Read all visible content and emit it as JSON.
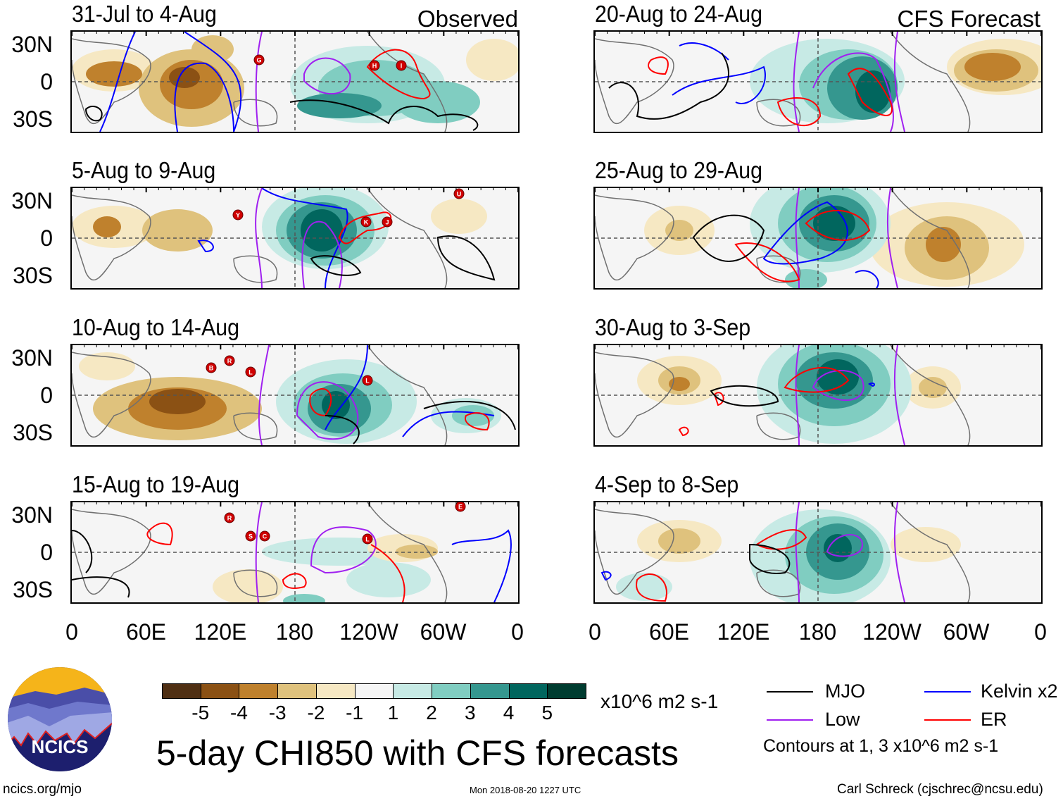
{
  "headers": {
    "observed": "Observed",
    "forecast": "CFS Forecast"
  },
  "panels": [
    {
      "title": "31-Jul to 4-Aug",
      "storms": [
        "G",
        "H",
        "I"
      ]
    },
    {
      "title": "5-Aug to 9-Aug",
      "storms": [
        "Y",
        "K",
        "J",
        "U"
      ]
    },
    {
      "title": "10-Aug to 14-Aug",
      "storms": [
        "B",
        "R",
        "L",
        "L"
      ]
    },
    {
      "title": "15-Aug to 19-Aug",
      "storms": [
        "R",
        "S",
        "C",
        "L",
        "E"
      ]
    },
    {
      "title": "20-Aug to 24-Aug",
      "storms": []
    },
    {
      "title": "25-Aug to 29-Aug",
      "storms": []
    },
    {
      "title": "30-Aug to 3-Sep",
      "storms": []
    },
    {
      "title": "4-Sep to 8-Sep",
      "storms": []
    }
  ],
  "lat_labels": [
    "30N",
    "0",
    "30S"
  ],
  "lon_labels": [
    "0",
    "60E",
    "120E",
    "180",
    "120W",
    "60W",
    "0"
  ],
  "colorbar": {
    "levels": [
      "-5",
      "-4",
      "-3",
      "-2",
      "-1",
      "1",
      "2",
      "3",
      "4",
      "5"
    ],
    "colors": [
      "#4f2f13",
      "#8b5114",
      "#bf812d",
      "#dfc27d",
      "#f6e8c3",
      "#f5f5f5",
      "#c7eae5",
      "#80cdc1",
      "#35978f",
      "#01665e",
      "#003c30"
    ],
    "units": "x10^6 m2 s-1"
  },
  "legend": {
    "items": [
      {
        "label": "MJO",
        "color": "#000000"
      },
      {
        "label": "Low",
        "color": "#a020f0"
      },
      {
        "label": "Kelvin x2",
        "color": "#0000ff"
      },
      {
        "label": "ER",
        "color": "#ff0000"
      }
    ],
    "note": "Contours at 1, 3 x10^6 m2 s-1"
  },
  "title": "5-day CHI850 with CFS forecasts",
  "logo_text": "NCICS",
  "footer": {
    "url": "ncics.org/mjo",
    "timestamp": "Mon 2018-08-20 1227 UTC",
    "author": "Carl Schreck (cjschrec@ncsu.edu)"
  }
}
